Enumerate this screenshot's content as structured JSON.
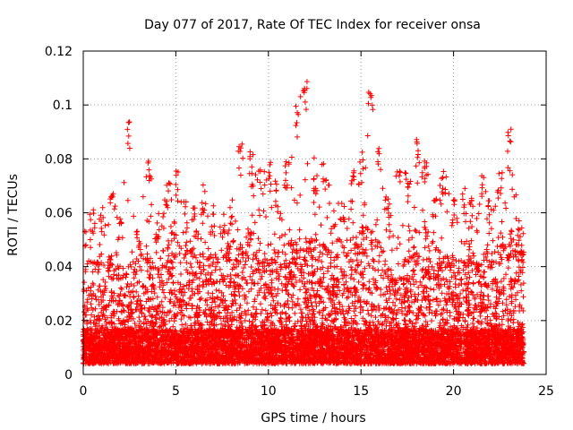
{
  "chart_data": {
    "type": "scatter",
    "title": "Day 077 of 2017, Rate Of TEC Index for receiver onsa",
    "xlabel": "GPS time / hours",
    "ylabel": "ROTI / TECUs",
    "xlim": [
      0,
      25
    ],
    "ylim": [
      0,
      0.12
    ],
    "x_ticks": [
      0,
      5,
      10,
      15,
      20,
      25
    ],
    "x_tick_labels": [
      "0",
      "5",
      "10",
      "15",
      "20",
      "25"
    ],
    "y_ticks": [
      0,
      0.02,
      0.04,
      0.06,
      0.08,
      0.1,
      0.12
    ],
    "y_tick_labels": [
      "0",
      "0.02",
      "0.04",
      "0.06",
      "0.08",
      "0.1",
      "0.12"
    ],
    "grid": true,
    "marker": "plus",
    "color": "#ff0000",
    "series": [
      {
        "envelope_hours": [
          0,
          0.5,
          1,
          1.5,
          2,
          2.5,
          3,
          3.5,
          4,
          4.5,
          5,
          5.5,
          6,
          6.5,
          7,
          7.5,
          8,
          8.5,
          9,
          9.5,
          10,
          10.5,
          11,
          11.5,
          12,
          12.5,
          13,
          13.5,
          14,
          14.5,
          15,
          15.5,
          16,
          16.5,
          17,
          17.5,
          18,
          18.5,
          19,
          19.5,
          20,
          20.5,
          21,
          21.5,
          22,
          22.5,
          23,
          23.5,
          23.8
        ],
        "envelope_max": [
          0.052,
          0.064,
          0.062,
          0.07,
          0.06,
          0.094,
          0.058,
          0.08,
          0.06,
          0.072,
          0.076,
          0.066,
          0.062,
          0.071,
          0.063,
          0.06,
          0.066,
          0.086,
          0.085,
          0.076,
          0.081,
          0.07,
          0.08,
          0.1,
          0.109,
          0.08,
          0.08,
          0.064,
          0.066,
          0.075,
          0.08,
          0.111,
          0.085,
          0.064,
          0.079,
          0.074,
          0.089,
          0.083,
          0.066,
          0.078,
          0.065,
          0.07,
          0.066,
          0.076,
          0.063,
          0.075,
          0.094,
          0.06,
          0.054
        ],
        "envelope_bulk": [
          0.04,
          0.045,
          0.045,
          0.045,
          0.04,
          0.04,
          0.045,
          0.045,
          0.04,
          0.05,
          0.055,
          0.05,
          0.052,
          0.05,
          0.045,
          0.045,
          0.05,
          0.05,
          0.055,
          0.05,
          0.045,
          0.05,
          0.055,
          0.05,
          0.052,
          0.05,
          0.05,
          0.048,
          0.05,
          0.05,
          0.055,
          0.055,
          0.05,
          0.04,
          0.035,
          0.05,
          0.055,
          0.055,
          0.05,
          0.045,
          0.045,
          0.045,
          0.05,
          0.045,
          0.05,
          0.05,
          0.055,
          0.05,
          0.045
        ],
        "baseline_range": [
          0.004,
          0.012
        ]
      }
    ]
  }
}
